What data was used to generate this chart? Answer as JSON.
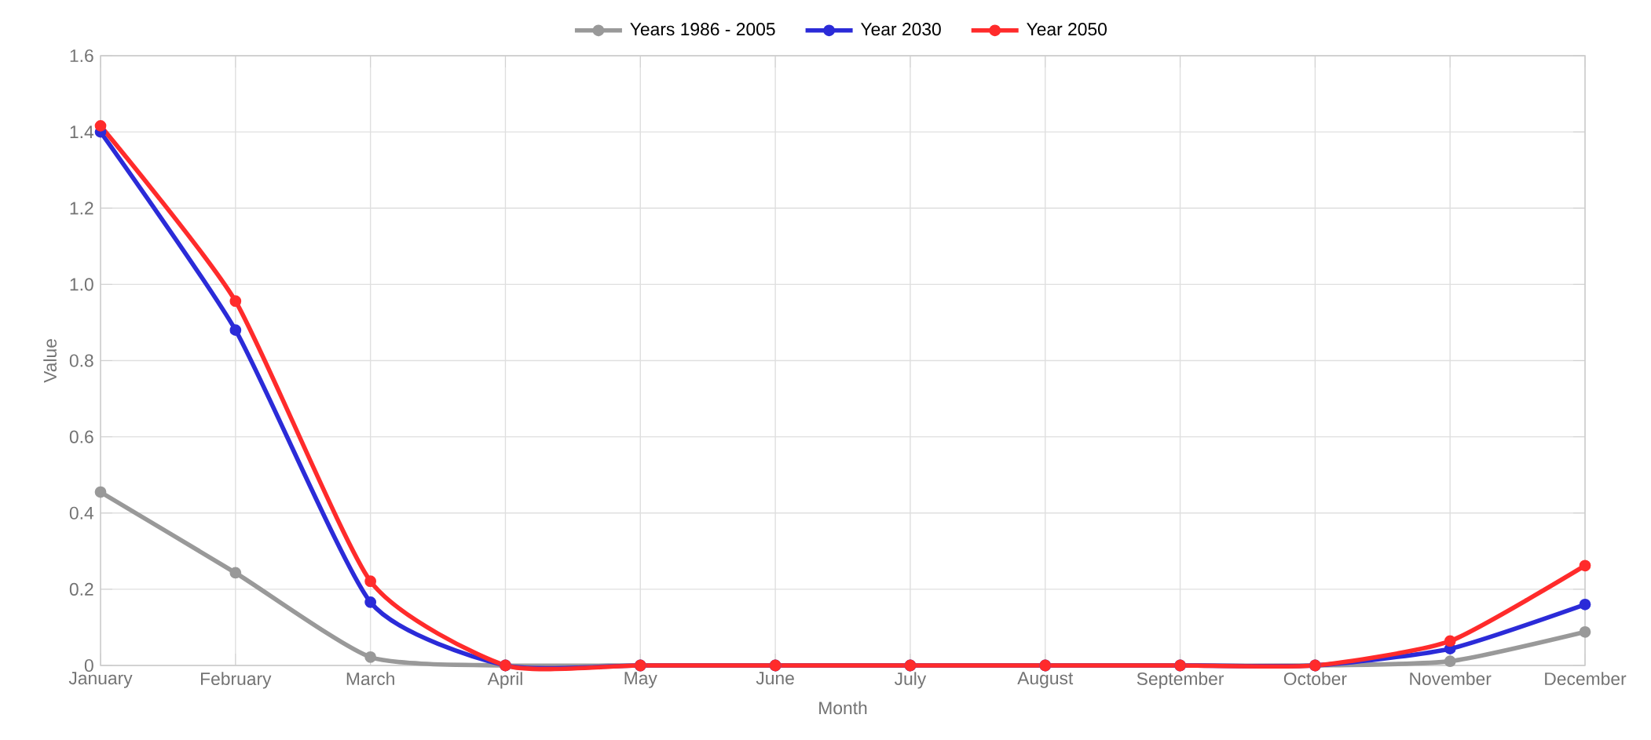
{
  "chart_data": {
    "type": "line",
    "xlabel": "Month",
    "ylabel": "Value",
    "categories": [
      "January",
      "February",
      "March",
      "April",
      "May",
      "June",
      "July",
      "August",
      "September",
      "October",
      "November",
      "December"
    ],
    "series": [
      {
        "name": "Years 1986 - 2005",
        "color": "#999999",
        "values": [
          0.455,
          0.243,
          0.022,
          0,
          0,
          0,
          0,
          0,
          0,
          0,
          0.011,
          0.088
        ]
      },
      {
        "name": "Year 2030",
        "color": "#2b2bd8",
        "values": [
          1.4,
          0.88,
          0.166,
          0,
          0,
          0,
          0,
          0,
          0,
          0,
          0.044,
          0.16
        ]
      },
      {
        "name": "Year 2050",
        "color": "#ff2b2b",
        "values": [
          1.416,
          0.956,
          0.221,
          0,
          0,
          0,
          0,
          0,
          0,
          0,
          0.064,
          0.262
        ]
      }
    ],
    "ylim": [
      0,
      1.6
    ],
    "yticks": [
      0,
      0.2,
      0.4,
      0.6,
      0.8,
      {
        "value": 1,
        "label": "1.0"
      },
      1.2,
      1.4,
      1.6
    ],
    "grid": true,
    "legend": "top",
    "marker": "circle",
    "line_style": "solid"
  }
}
